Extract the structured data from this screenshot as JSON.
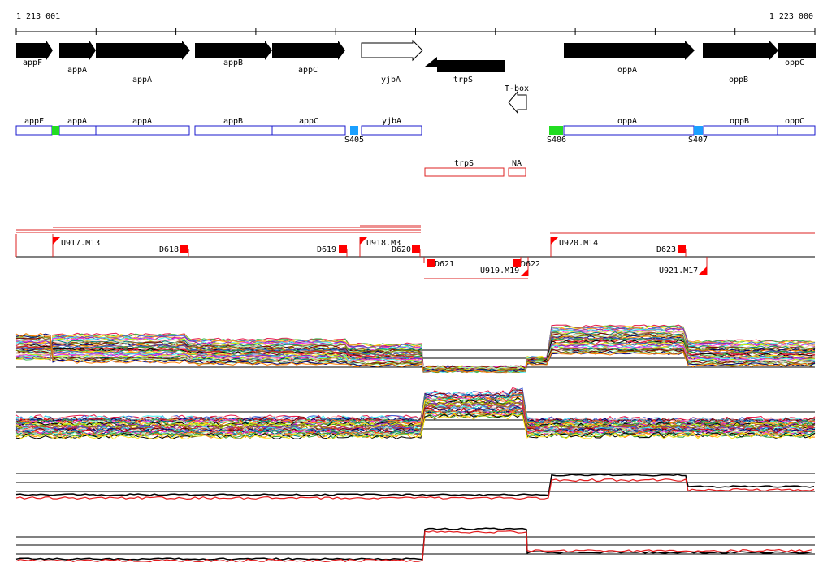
{
  "ruler": {
    "start_label": "1 213 001",
    "end_label": "1 223 000"
  },
  "genes": [
    {
      "label": "appF",
      "strand": "+",
      "filled": true
    },
    {
      "label": "appA",
      "strand": "+",
      "filled": true
    },
    {
      "label": "appA",
      "strand": "+",
      "filled": true
    },
    {
      "label": "appB",
      "strand": "+",
      "filled": true
    },
    {
      "label": "appC",
      "strand": "+",
      "filled": true
    },
    {
      "label": "yjbA",
      "strand": "+",
      "filled": false
    },
    {
      "label": "trpS",
      "strand": "-",
      "filled": true
    },
    {
      "label": "oppA",
      "strand": "+",
      "filled": true
    },
    {
      "label": "oppB",
      "strand": "+",
      "filled": true
    },
    {
      "label": "oppC",
      "strand": "+",
      "filled": true
    }
  ],
  "tbox": {
    "label": "T-box",
    "strand": "-"
  },
  "segments": [
    {
      "label": "appF"
    },
    {
      "label": "appA"
    },
    {
      "label": "appA"
    },
    {
      "label": "appB"
    },
    {
      "label": "appC"
    },
    {
      "label": "yjbA"
    },
    {
      "label": "oppA"
    },
    {
      "label": "oppB"
    },
    {
      "label": "oppC"
    }
  ],
  "sites": [
    {
      "label": "",
      "color": "#22dd22"
    },
    {
      "label": "S405",
      "color": "#1aa0ff"
    },
    {
      "label": "S406",
      "color": "#22dd22"
    },
    {
      "label": "S407",
      "color": "#1aa0ff"
    }
  ],
  "reverse_segments": [
    {
      "label": "trpS"
    },
    {
      "label": "NA"
    }
  ],
  "upshifts": [
    {
      "label": "U917.M13"
    },
    {
      "label": "U918.M3"
    },
    {
      "label": "U919.M19"
    },
    {
      "label": "U920.M14"
    },
    {
      "label": "U921.M17"
    }
  ],
  "downshifts": [
    {
      "label": "D618"
    },
    {
      "label": "D619"
    },
    {
      "label": "D620"
    },
    {
      "label": "D621"
    },
    {
      "label": "D622"
    },
    {
      "label": "D623"
    }
  ],
  "colors": {
    "gene": "#000000",
    "segment": "#1a1acc",
    "shift": "#ff0000",
    "axis": "#000000",
    "mean_pos": "#000000",
    "mean_neg": "#e31a1c"
  },
  "profile_panels": [
    {
      "strand": "+",
      "type": "multi-condition"
    },
    {
      "strand": "-",
      "type": "multi-condition"
    },
    {
      "strand": "+",
      "type": "summary"
    },
    {
      "strand": "-",
      "type": "summary"
    }
  ]
}
